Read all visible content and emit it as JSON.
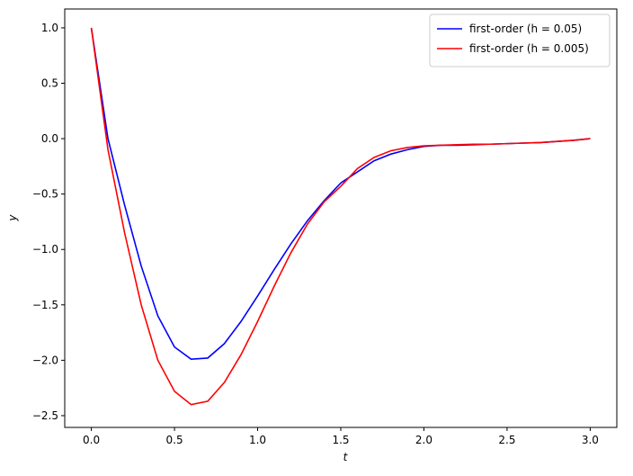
{
  "chart_data": {
    "type": "line",
    "xlabel": "t",
    "ylabel": "y",
    "x": [
      0.0,
      0.1,
      0.2,
      0.3,
      0.4,
      0.5,
      0.6,
      0.7,
      0.8,
      0.9,
      1.0,
      1.1,
      1.2,
      1.3,
      1.4,
      1.5,
      1.6,
      1.7,
      1.8,
      1.9,
      2.0,
      2.1,
      2.2,
      2.3,
      2.4,
      2.5,
      2.6,
      2.7,
      2.8,
      2.9,
      3.0
    ],
    "series": [
      {
        "name": "first-order (h = 0.05)",
        "color": "#0000ff",
        "values": [
          1.0,
          0.0,
          -0.6,
          -1.15,
          -1.6,
          -1.88,
          -1.99,
          -1.98,
          -1.85,
          -1.65,
          -1.42,
          -1.18,
          -0.95,
          -0.74,
          -0.56,
          -0.4,
          -0.3,
          -0.2,
          -0.14,
          -0.1,
          -0.07,
          -0.06,
          -0.06,
          -0.055,
          -0.05,
          -0.045,
          -0.04,
          -0.035,
          -0.025,
          -0.015,
          0.0
        ]
      },
      {
        "name": "first-order (h = 0.005)",
        "color": "#ff0000",
        "values": [
          1.0,
          -0.1,
          -0.85,
          -1.5,
          -2.0,
          -2.28,
          -2.4,
          -2.37,
          -2.2,
          -1.95,
          -1.65,
          -1.33,
          -1.03,
          -0.77,
          -0.57,
          -0.43,
          -0.27,
          -0.17,
          -0.11,
          -0.08,
          -0.065,
          -0.06,
          -0.055,
          -0.05,
          -0.05,
          -0.045,
          -0.04,
          -0.035,
          -0.025,
          -0.015,
          0.0
        ]
      }
    ],
    "xlim": [
      -0.16,
      3.16
    ],
    "ylim": [
      -2.606,
      1.17
    ],
    "xticks": [
      {
        "value": 0.0,
        "label": "0.0"
      },
      {
        "value": 0.5,
        "label": "0.5"
      },
      {
        "value": 1.0,
        "label": "1.0"
      },
      {
        "value": 1.5,
        "label": "1.5"
      },
      {
        "value": 2.0,
        "label": "2.0"
      },
      {
        "value": 2.5,
        "label": "2.5"
      },
      {
        "value": 3.0,
        "label": "3.0"
      }
    ],
    "yticks": [
      {
        "value": -2.5,
        "label": "−2.5"
      },
      {
        "value": -2.0,
        "label": "−2.0"
      },
      {
        "value": -1.5,
        "label": "−1.5"
      },
      {
        "value": -1.0,
        "label": "−1.0"
      },
      {
        "value": -0.5,
        "label": "−0.5"
      },
      {
        "value": 0.0,
        "label": "0.0"
      },
      {
        "value": 0.5,
        "label": "0.5"
      },
      {
        "value": 1.0,
        "label": "1.0"
      }
    ],
    "legend": "upper right",
    "grid": false
  }
}
